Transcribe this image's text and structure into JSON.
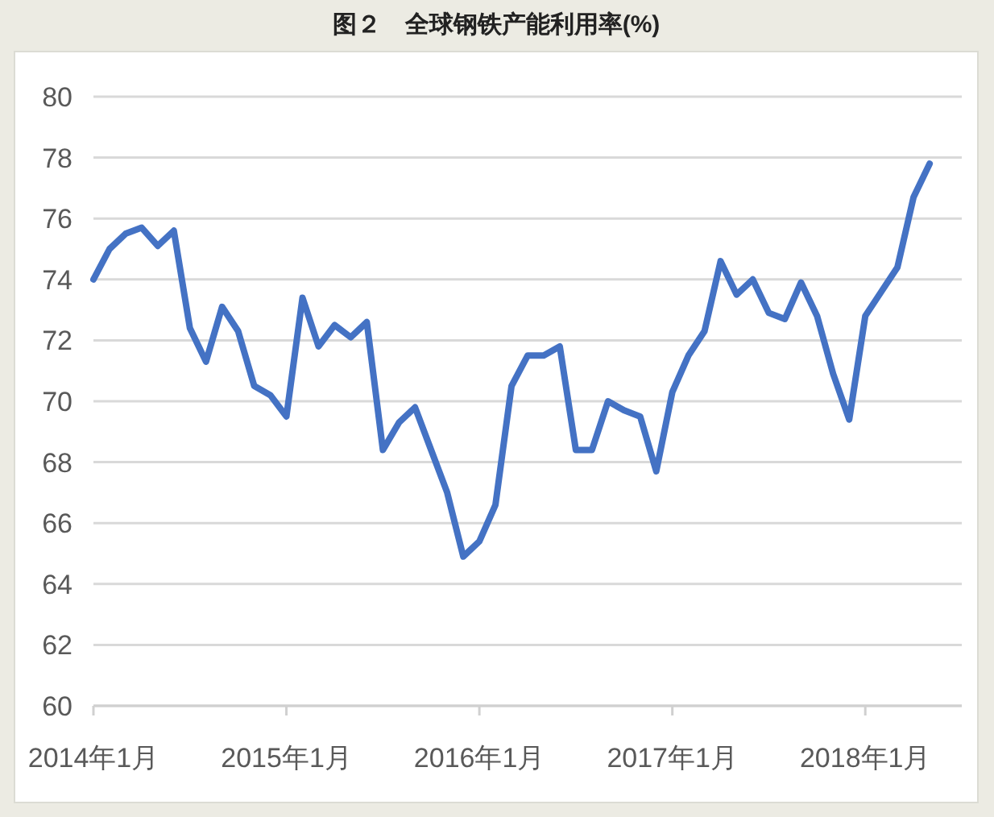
{
  "chart_data": {
    "type": "line",
    "title": "图２　全球钢铁产能利用率(%)",
    "x": [
      "2014-01",
      "2014-02",
      "2014-03",
      "2014-04",
      "2014-05",
      "2014-06",
      "2014-07",
      "2014-08",
      "2014-09",
      "2014-10",
      "2014-11",
      "2014-12",
      "2015-01",
      "2015-02",
      "2015-03",
      "2015-04",
      "2015-05",
      "2015-06",
      "2015-07",
      "2015-08",
      "2015-09",
      "2015-10",
      "2015-11",
      "2015-12",
      "2016-01",
      "2016-02",
      "2016-03",
      "2016-04",
      "2016-05",
      "2016-06",
      "2016-07",
      "2016-08",
      "2016-09",
      "2016-10",
      "2016-11",
      "2016-12",
      "2017-01",
      "2017-02",
      "2017-03",
      "2017-04",
      "2017-05",
      "2017-06",
      "2017-07",
      "2017-08",
      "2017-09",
      "2017-10",
      "2017-11",
      "2017-12",
      "2018-01",
      "2018-02",
      "2018-03",
      "2018-04",
      "2018-05"
    ],
    "series": [
      {
        "color": "#4472c4",
        "values": [
          74.0,
          75.0,
          75.5,
          75.7,
          75.1,
          75.6,
          72.4,
          71.3,
          73.1,
          72.3,
          70.5,
          70.2,
          69.5,
          73.4,
          71.8,
          72.5,
          72.1,
          72.6,
          68.4,
          69.3,
          69.8,
          68.4,
          67.0,
          64.9,
          65.4,
          66.6,
          70.5,
          71.5,
          71.5,
          71.8,
          68.4,
          68.4,
          70.0,
          69.7,
          69.5,
          67.7,
          70.3,
          71.5,
          72.3,
          74.6,
          73.5,
          74.0,
          72.9,
          72.7,
          73.9,
          72.8,
          70.9,
          69.4,
          72.8,
          73.6,
          74.4,
          76.7,
          77.8
        ]
      }
    ],
    "xlim": [
      "2014-01",
      "2018-07"
    ],
    "xticks": [
      {
        "value": "2014-01",
        "label": "2014年1月"
      },
      {
        "value": "2015-01",
        "label": "2015年1月"
      },
      {
        "value": "2016-01",
        "label": "2016年1月"
      },
      {
        "value": "2017-01",
        "label": "2017年1月"
      },
      {
        "value": "2018-01",
        "label": "2018年1月"
      }
    ],
    "ylim": [
      60,
      80
    ],
    "yticks": [
      60,
      62,
      64,
      66,
      68,
      70,
      72,
      74,
      76,
      78,
      80
    ],
    "grid": "y",
    "line_style": "solid"
  }
}
